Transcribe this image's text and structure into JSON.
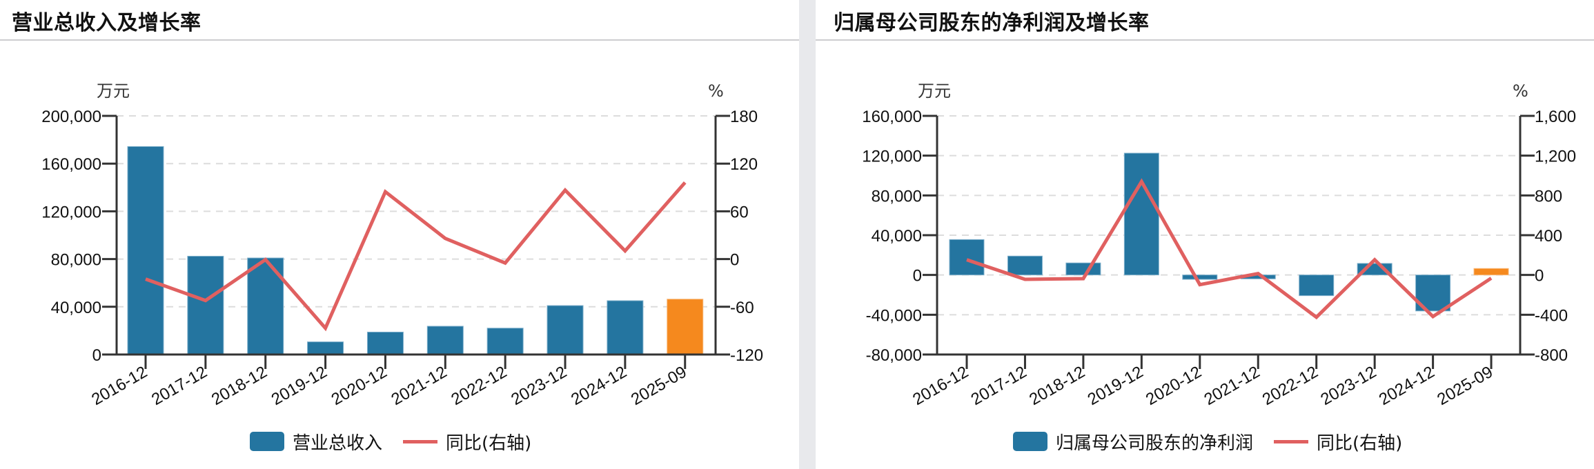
{
  "colors": {
    "bar": "#2475a0",
    "bar_highlight": "#f5891e",
    "line": "#e06060",
    "axis": "#333333",
    "grid": "#dcdcdc",
    "divider": "#e8e9ec"
  },
  "panels": [
    {
      "title": "营业总收入及增长率",
      "left_unit": "万元",
      "right_unit": "%",
      "legend": {
        "bar_label": "营业总收入",
        "line_label": "同比(右轴)"
      }
    },
    {
      "title": "归属母公司股东的净利润及增长率",
      "left_unit": "万元",
      "right_unit": "%",
      "legend": {
        "bar_label": "归属母公司股东的净利润",
        "line_label": "同比(右轴)"
      }
    }
  ],
  "chart_data": [
    {
      "type": "bar",
      "title": "营业总收入及增长率",
      "categories": [
        "2016-12",
        "2017-12",
        "2018-12",
        "2019-12",
        "2020-12",
        "2021-12",
        "2022-12",
        "2023-12",
        "2024-12",
        "2025-09"
      ],
      "series": [
        {
          "name": "营业总收入",
          "type": "bar",
          "axis": "left",
          "values": [
            174300,
            82400,
            80900,
            10600,
            18800,
            23700,
            22100,
            41000,
            45100,
            46400
          ],
          "highlight_index": 9
        },
        {
          "name": "同比(右轴)",
          "type": "line",
          "axis": "right",
          "values": [
            -25.2,
            -52.1,
            -0.7,
            -86.8,
            84.6,
            25.9,
            -5.0,
            86.6,
            10.3,
            96.2
          ]
        }
      ],
      "ylabel": "万元",
      "y2label": "%",
      "ylim": [
        0,
        200000
      ],
      "yticks": [
        0,
        40000,
        80000,
        120000,
        160000,
        200000
      ],
      "ytick_labels": [
        "0",
        "40,000",
        "80,000",
        "120,000",
        "160,000",
        "200,000"
      ],
      "y2lim": [
        -120,
        180
      ],
      "y2ticks": [
        -120,
        -60,
        0,
        60,
        120,
        180
      ],
      "y2tick_labels": [
        "-120",
        "-60",
        "0",
        "60",
        "120",
        "180"
      ],
      "grid": true,
      "legend_position": "bottom"
    },
    {
      "type": "bar",
      "title": "归属母公司股东的净利润及增长率",
      "categories": [
        "2016-12",
        "2017-12",
        "2018-12",
        "2019-12",
        "2020-12",
        "2021-12",
        "2022-12",
        "2023-12",
        "2024-12",
        "2025-09"
      ],
      "series": [
        {
          "name": "归属母公司股东的净利润",
          "type": "bar",
          "axis": "left",
          "values": [
            35600,
            19000,
            12100,
            122500,
            -4400,
            -3900,
            -20800,
            11600,
            -36200,
            6500
          ],
          "highlight_index": 9
        },
        {
          "name": "同比(右轴)",
          "type": "line",
          "axis": "right",
          "values": [
            152.6,
            -43.7,
            -36.8,
            939,
            -97,
            13.9,
            -425,
            152.6,
            -418,
            -32
          ]
        }
      ],
      "ylabel": "万元",
      "y2label": "%",
      "ylim": [
        -80000,
        160000
      ],
      "yticks": [
        -80000,
        -40000,
        0,
        40000,
        80000,
        120000,
        160000
      ],
      "ytick_labels": [
        "-80,000",
        "-40,000",
        "0",
        "40,000",
        "80,000",
        "120,000",
        "160,000"
      ],
      "y2lim": [
        -800,
        1600
      ],
      "y2ticks": [
        -800,
        -400,
        0,
        400,
        800,
        1200,
        1600
      ],
      "y2tick_labels": [
        "-800",
        "-400",
        "0",
        "400",
        "800",
        "1,200",
        "1,600"
      ],
      "grid": true,
      "legend_position": "bottom"
    }
  ]
}
